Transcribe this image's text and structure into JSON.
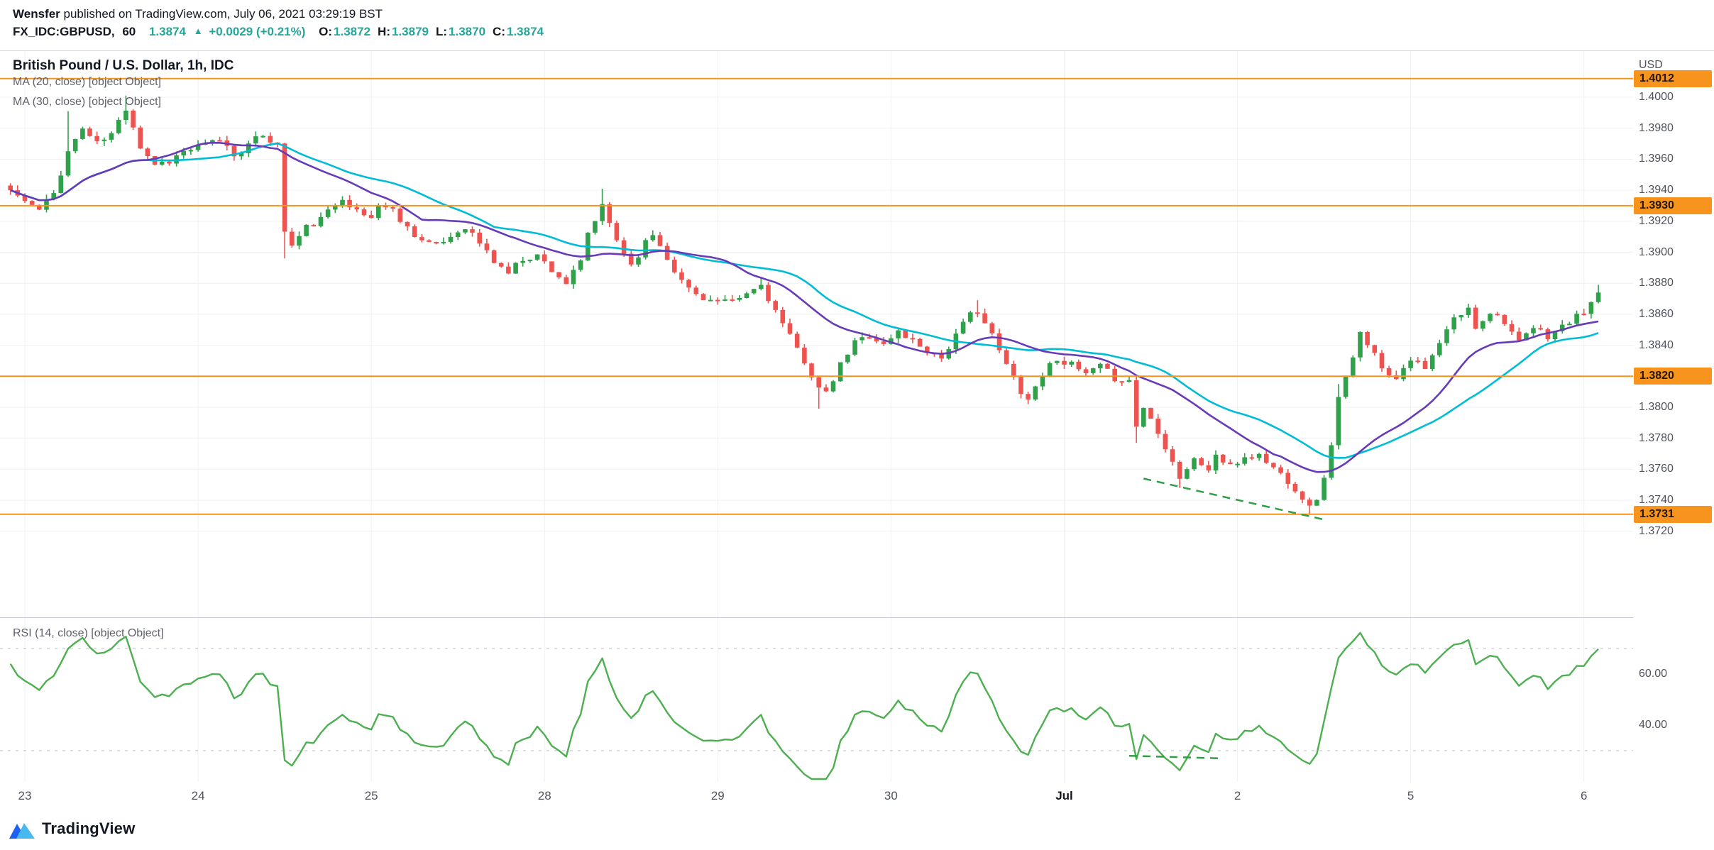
{
  "header": {
    "byline": {
      "author": "Wensfer",
      "rest": " published on TradingView.com, July 06, 2021 03:29:19 BST"
    },
    "symbol_line": {
      "symbol": "FX_IDC:GBPUSD,",
      "interval": "60",
      "last_price": "1.3874",
      "direction_arrow": "▲",
      "change": "+0.0029 (+0.21%)",
      "ohlc": [
        {
          "label": "O:",
          "value": "1.3872"
        },
        {
          "label": "H:",
          "value": "1.3879"
        },
        {
          "label": "L:",
          "value": "1.3870"
        },
        {
          "label": "C:",
          "value": "1.3874"
        }
      ]
    }
  },
  "main_pane": {
    "legend_title": "British Pound / U.S. Dollar, 1h, IDC",
    "legend_ma20": "MA (20, close) [object Object]",
    "legend_ma30": "MA (30, close) [object Object]"
  },
  "rsi_pane": {
    "legend": "RSI (14, close) [object Object]"
  },
  "price_axis": {
    "currency": "USD"
  },
  "time_axis": {
    "ticks": [
      {
        "label": "23",
        "bar": 2,
        "major": false
      },
      {
        "label": "24",
        "bar": 26,
        "major": false
      },
      {
        "label": "25",
        "bar": 50,
        "major": false
      },
      {
        "label": "28",
        "bar": 74,
        "major": false
      },
      {
        "label": "29",
        "bar": 98,
        "major": false
      },
      {
        "label": "30",
        "bar": 122,
        "major": false
      },
      {
        "label": "Jul",
        "bar": 146,
        "major": true
      },
      {
        "label": "2",
        "bar": 170,
        "major": false
      },
      {
        "label": "5",
        "bar": 194,
        "major": false
      },
      {
        "label": "6",
        "bar": 218,
        "major": false
      }
    ]
  },
  "footer": {
    "brand": "TradingView"
  },
  "colors": {
    "candle_up": "#2fa14a",
    "candle_down": "#ef5350",
    "ma20": "#673ab7",
    "ma30": "#00bcd4",
    "rsi": "#4caf50",
    "level": "#f7941d",
    "trendline": "#2f9e45",
    "grid": "#eef0f5",
    "rsi_band": "#b9bdc7"
  },
  "chart_data": {
    "type": "candlestick",
    "symbol": "GBPUSD",
    "interval": "1h",
    "bar_count": 221,
    "price_levels": [
      1.4012,
      1.393,
      1.382,
      1.3731
    ],
    "y_axis": {
      "min": 1.3667,
      "max": 1.403,
      "ticks": [
        1.4,
        1.398,
        1.396,
        1.394,
        1.392,
        1.39,
        1.388,
        1.386,
        1.384,
        1.382,
        1.38,
        1.378,
        1.376,
        1.374,
        1.372
      ]
    },
    "overlays": [
      {
        "name": "MA20",
        "color": "#673ab7"
      },
      {
        "name": "MA30",
        "color": "#00bcd4"
      }
    ],
    "close_path_anchors": [
      [
        0,
        1.394
      ],
      [
        2,
        1.3933
      ],
      [
        4,
        1.3927
      ],
      [
        6,
        1.3938
      ],
      [
        8,
        1.3965
      ],
      [
        10,
        1.398
      ],
      [
        12,
        1.397
      ],
      [
        14,
        1.3976
      ],
      [
        16,
        1.3993
      ],
      [
        17,
        1.3982
      ],
      [
        18,
        1.3968
      ],
      [
        20,
        1.3957
      ],
      [
        22,
        1.3959
      ],
      [
        24,
        1.3965
      ],
      [
        27,
        1.3969
      ],
      [
        29,
        1.3973
      ],
      [
        31,
        1.3963
      ],
      [
        33,
        1.3969
      ],
      [
        35,
        1.3976
      ],
      [
        37,
        1.3969
      ],
      [
        38,
        1.3914
      ],
      [
        39,
        1.3904
      ],
      [
        41,
        1.3916
      ],
      [
        43,
        1.3921
      ],
      [
        45,
        1.3931
      ],
      [
        46,
        1.3936
      ],
      [
        48,
        1.3926
      ],
      [
        50,
        1.3922
      ],
      [
        51,
        1.3931
      ],
      [
        53,
        1.3927
      ],
      [
        55,
        1.3916
      ],
      [
        57,
        1.3908
      ],
      [
        59,
        1.3904
      ],
      [
        61,
        1.391
      ],
      [
        63,
        1.3917
      ],
      [
        65,
        1.3906
      ],
      [
        67,
        1.3894
      ],
      [
        69,
        1.3887
      ],
      [
        71,
        1.3896
      ],
      [
        73,
        1.3898
      ],
      [
        75,
        1.3889
      ],
      [
        77,
        1.388
      ],
      [
        79,
        1.3893
      ],
      [
        80,
        1.3912
      ],
      [
        82,
        1.3929
      ],
      [
        84,
        1.3908
      ],
      [
        86,
        1.3892
      ],
      [
        88,
        1.3906
      ],
      [
        89,
        1.3912
      ],
      [
        91,
        1.3897
      ],
      [
        93,
        1.3881
      ],
      [
        95,
        1.3873
      ],
      [
        97,
        1.3869
      ],
      [
        100,
        1.3867
      ],
      [
        102,
        1.3873
      ],
      [
        104,
        1.3879
      ],
      [
        106,
        1.3862
      ],
      [
        108,
        1.3845
      ],
      [
        110,
        1.383
      ],
      [
        112,
        1.3812
      ],
      [
        113,
        1.3808
      ],
      [
        115,
        1.3827
      ],
      [
        117,
        1.3842
      ],
      [
        119,
        1.3847
      ],
      [
        121,
        1.384
      ],
      [
        123,
        1.3849
      ],
      [
        125,
        1.3843
      ],
      [
        127,
        1.3837
      ],
      [
        129,
        1.3832
      ],
      [
        131,
        1.3846
      ],
      [
        133,
        1.386
      ],
      [
        134,
        1.3863
      ],
      [
        136,
        1.3846
      ],
      [
        138,
        1.3827
      ],
      [
        140,
        1.3811
      ],
      [
        141,
        1.3805
      ],
      [
        143,
        1.3822
      ],
      [
        145,
        1.3832
      ],
      [
        147,
        1.3827
      ],
      [
        149,
        1.3821
      ],
      [
        151,
        1.3826
      ],
      [
        153,
        1.3819
      ],
      [
        155,
        1.3817
      ],
      [
        156,
        1.3788
      ],
      [
        157,
        1.38
      ],
      [
        159,
        1.3785
      ],
      [
        160,
        1.3775
      ],
      [
        162,
        1.3755
      ],
      [
        164,
        1.3766
      ],
      [
        166,
        1.376
      ],
      [
        167,
        1.3769
      ],
      [
        169,
        1.3761
      ],
      [
        171,
        1.3768
      ],
      [
        173,
        1.3769
      ],
      [
        175,
        1.3761
      ],
      [
        177,
        1.3753
      ],
      [
        179,
        1.3742
      ],
      [
        180,
        1.3735
      ],
      [
        181,
        1.3742
      ],
      [
        182,
        1.3753
      ],
      [
        183,
        1.3777
      ],
      [
        184,
        1.3806
      ],
      [
        186,
        1.3831
      ],
      [
        187,
        1.3847
      ],
      [
        189,
        1.3837
      ],
      [
        190,
        1.3824
      ],
      [
        192,
        1.382
      ],
      [
        194,
        1.3832
      ],
      [
        196,
        1.3824
      ],
      [
        198,
        1.3841
      ],
      [
        200,
        1.3857
      ],
      [
        202,
        1.3863
      ],
      [
        203,
        1.3852
      ],
      [
        205,
        1.3862
      ],
      [
        207,
        1.3856
      ],
      [
        209,
        1.3841
      ],
      [
        211,
        1.3851
      ],
      [
        213,
        1.3846
      ],
      [
        215,
        1.3852
      ],
      [
        217,
        1.3858
      ],
      [
        219,
        1.3866
      ],
      [
        220,
        1.3874
      ]
    ],
    "wick_overrides": [
      [
        8,
        "high",
        1.3991
      ],
      [
        16,
        "high",
        1.4001
      ],
      [
        38,
        "low",
        1.3896
      ],
      [
        82,
        "high",
        1.3941
      ],
      [
        104,
        "high",
        1.3884
      ],
      [
        112,
        "low",
        1.3799
      ],
      [
        134,
        "high",
        1.3869
      ],
      [
        156,
        "low",
        1.3777
      ],
      [
        162,
        "low",
        1.3748
      ],
      [
        180,
        "low",
        1.3731
      ],
      [
        184,
        "high",
        1.3815
      ],
      [
        220,
        "high",
        1.3879
      ]
    ],
    "trendline_main": {
      "bar1": 157,
      "price1": 1.3754,
      "bar2": 182.5,
      "price2": 1.3727,
      "style": "dashed"
    },
    "rsi": {
      "period": 14,
      "levels": [
        70,
        30
      ],
      "axis_ticks": [
        60,
        40
      ],
      "trendline": {
        "bar1": 155,
        "rsi1": 28,
        "bar2": 167.5,
        "rsi2": 27,
        "style": "dashed"
      }
    }
  }
}
